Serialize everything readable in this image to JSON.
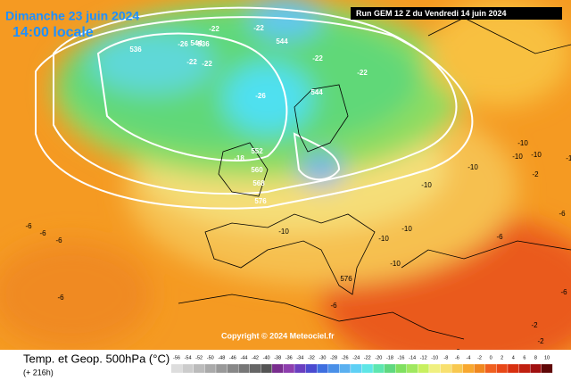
{
  "header": {
    "title": "Dimanche 23 juin 2024",
    "subtitle": "14:00 locale",
    "run": "Run GEM 12 Z du Vendredi 14 juin 2024"
  },
  "copyright": "Copyright © 2024 Meteociel.fr",
  "footer": {
    "title": "Temp. et Geop. 500hPa (°C)",
    "lead": "(+ 216h)"
  },
  "legend": {
    "labels": [
      "-56",
      "-54",
      "-52",
      "-50",
      "-48",
      "-46",
      "-44",
      "-42",
      "-40",
      "-38",
      "-36",
      "-34",
      "-32",
      "-30",
      "-28",
      "-26",
      "-24",
      "-22",
      "-20",
      "-18",
      "-16",
      "-14",
      "-12",
      "-10",
      "-8",
      "-6",
      "-4",
      "-2",
      "0",
      "2",
      "4",
      "6",
      "8",
      "10"
    ],
    "colors": [
      "#ddd",
      "#ccc",
      "#bbb",
      "#aaa",
      "#999",
      "#888",
      "#777",
      "#666",
      "#555",
      "#7a2f8f",
      "#8e3fae",
      "#6a3fc0",
      "#4b4bd0",
      "#3f6fe0",
      "#4a90e8",
      "#5ab0f0",
      "#5fd0f5",
      "#5fe6e6",
      "#5ee6b0",
      "#60d880",
      "#80e060",
      "#a0e860",
      "#c8f060",
      "#f0f080",
      "#f8e070",
      "#f8c850",
      "#f8a830",
      "#f08820",
      "#f06020",
      "#e84818",
      "#d83010",
      "#c02010",
      "#a01010",
      "#600808"
    ]
  },
  "map_labels": [
    "536",
    "-26",
    "544",
    "-22",
    "-22",
    "-22",
    "536",
    "-22",
    "544",
    "-26",
    "544",
    "-22",
    "-22",
    "552",
    "-18",
    "560",
    "568",
    "576",
    "-10",
    "-10",
    "-10",
    "-10",
    "-10",
    "-10",
    "-10",
    "-6",
    "-6",
    "-6",
    "-6",
    "-6",
    "-6",
    "-6",
    "-6",
    "-6",
    "-2",
    "-2",
    "-2",
    "576",
    "-10",
    "-10",
    "-10"
  ]
}
